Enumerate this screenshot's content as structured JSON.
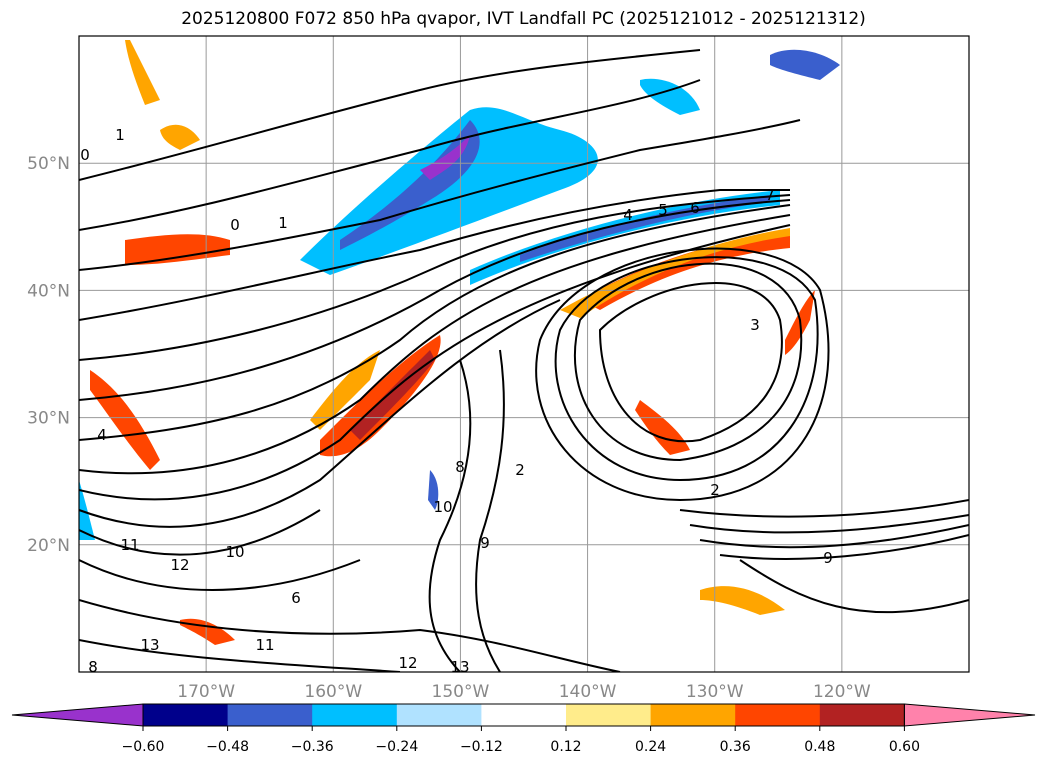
{
  "title": "2025120800 F072 850 hPa qvapor, IVT Landfall PC (2025121012 - 2025121312)",
  "map": {
    "lon_range": [
      -180,
      -110
    ],
    "lat_range": [
      10,
      60
    ],
    "lon_ticks": [
      {
        "value": -170,
        "label": "170°W"
      },
      {
        "value": -160,
        "label": "160°W"
      },
      {
        "value": -150,
        "label": "150°W"
      },
      {
        "value": -140,
        "label": "140°W"
      },
      {
        "value": -130,
        "label": "130°W"
      },
      {
        "value": -120,
        "label": "120°W"
      }
    ],
    "lat_ticks": [
      {
        "value": 50,
        "label": "50°N"
      },
      {
        "value": 40,
        "label": "40°N"
      },
      {
        "value": 30,
        "label": "30°N"
      },
      {
        "value": 20,
        "label": "20°N"
      }
    ],
    "contour_labels": [
      "0",
      "1",
      "4",
      "5",
      "6",
      "7",
      "3",
      "2",
      "1",
      "0",
      "9",
      "10",
      "11",
      "12",
      "13",
      "8",
      "9",
      "10",
      "11",
      "12",
      "13",
      "2",
      "4",
      "8",
      "6"
    ]
  },
  "colorbar": {
    "colors": [
      "#9932cc",
      "#00008b",
      "#3a5fcd",
      "#00bfff",
      "#b0e2ff",
      "#ffffff",
      "#ffec8b",
      "#ffa500",
      "#ff4500",
      "#b22222",
      "#ff82ab"
    ],
    "tick_labels": [
      "−0.60",
      "−0.48",
      "−0.36",
      "−0.24",
      "−0.12",
      "0.12",
      "0.24",
      "0.36",
      "0.48",
      "0.60"
    ]
  }
}
